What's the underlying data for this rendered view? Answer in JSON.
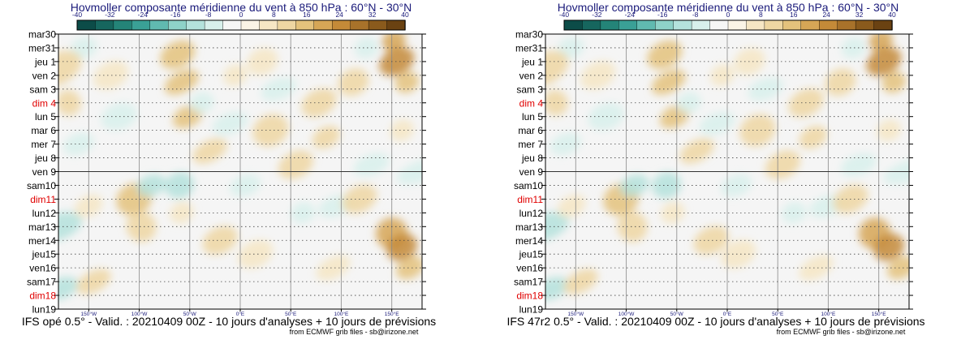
{
  "colors": {
    "title": "#1a1a7a",
    "weekend": "#e00000",
    "scale": [
      "#0c4c48",
      "#16665e",
      "#248478",
      "#3aa096",
      "#60bab0",
      "#8ed2c8",
      "#b4e2dc",
      "#d8f0ec",
      "#f6f6f6",
      "#fbf4e6",
      "#f6e6c4",
      "#eed6a2",
      "#e4c27c",
      "#d6a656",
      "#c48a38",
      "#a8722a",
      "#8a5a1c",
      "#6a4212"
    ]
  },
  "chart_data": [
    {
      "type": "heatmap",
      "title": "Hovmoller composante méridienne du vent à 850 hPa : 60°N - 30°N",
      "colorbar_ticks": [
        "-40",
        "-32",
        "-24",
        "-16",
        "-8",
        "0",
        "8",
        "16",
        "24",
        "32",
        "40"
      ],
      "days": [
        {
          "label": "mar30",
          "weekend": false
        },
        {
          "label": "mer31",
          "weekend": false
        },
        {
          "label": "jeu 1",
          "weekend": false
        },
        {
          "label": "ven 2",
          "weekend": false
        },
        {
          "label": "sam 3",
          "weekend": false
        },
        {
          "label": "dim 4",
          "weekend": true
        },
        {
          "label": "lun 5",
          "weekend": false
        },
        {
          "label": "mar 6",
          "weekend": false
        },
        {
          "label": "mer 7",
          "weekend": false
        },
        {
          "label": "jeu 8",
          "weekend": false
        },
        {
          "label": "ven 9",
          "weekend": false
        },
        {
          "label": "sam10",
          "weekend": false
        },
        {
          "label": "dim11",
          "weekend": true
        },
        {
          "label": "lun12",
          "weekend": false
        },
        {
          "label": "mar13",
          "weekend": false
        },
        {
          "label": "mer14",
          "weekend": false
        },
        {
          "label": "jeu15",
          "weekend": false
        },
        {
          "label": "ven16",
          "weekend": false
        },
        {
          "label": "sam17",
          "weekend": false
        },
        {
          "label": "dim18",
          "weekend": true
        },
        {
          "label": "lun19",
          "weekend": false
        }
      ],
      "analysis_forecast_split": "ven 9",
      "xlim": [
        -180,
        180
      ],
      "x_ticks": [
        {
          "value": -150,
          "label": "150°W"
        },
        {
          "value": -100,
          "label": "100°W"
        },
        {
          "value": -50,
          "label": "50°W"
        },
        {
          "value": 0,
          "label": "0°E"
        },
        {
          "value": 50,
          "label": "50°E"
        },
        {
          "value": 100,
          "label": "100°E"
        },
        {
          "value": 150,
          "label": "150°E"
        }
      ],
      "footer": "IFS opé 0.5° - Valid. : 20210409 00Z - 10 jours d'analyses + 10 jours de prévisions",
      "credit": "from ECMWF grib files - sb@irizone.net"
    },
    {
      "type": "heatmap",
      "title": "Hovmoller composante méridienne du vent à 850 hPa : 60°N - 30°N",
      "colorbar_ticks": [
        "-40",
        "-32",
        "-24",
        "-16",
        "-8",
        "0",
        "8",
        "16",
        "24",
        "32",
        "40"
      ],
      "days": [
        {
          "label": "mar30",
          "weekend": false
        },
        {
          "label": "mer31",
          "weekend": false
        },
        {
          "label": "jeu 1",
          "weekend": false
        },
        {
          "label": "ven 2",
          "weekend": false
        },
        {
          "label": "sam 3",
          "weekend": false
        },
        {
          "label": "dim 4",
          "weekend": true
        },
        {
          "label": "lun 5",
          "weekend": false
        },
        {
          "label": "mar 6",
          "weekend": false
        },
        {
          "label": "mer 7",
          "weekend": false
        },
        {
          "label": "jeu 8",
          "weekend": false
        },
        {
          "label": "ven 9",
          "weekend": false
        },
        {
          "label": "sam10",
          "weekend": false
        },
        {
          "label": "dim11",
          "weekend": true
        },
        {
          "label": "lun12",
          "weekend": false
        },
        {
          "label": "mar13",
          "weekend": false
        },
        {
          "label": "mer14",
          "weekend": false
        },
        {
          "label": "jeu15",
          "weekend": false
        },
        {
          "label": "ven16",
          "weekend": false
        },
        {
          "label": "sam17",
          "weekend": false
        },
        {
          "label": "dim18",
          "weekend": true
        },
        {
          "label": "lun19",
          "weekend": false
        }
      ],
      "analysis_forecast_split": "ven 9",
      "xlim": [
        -180,
        180
      ],
      "x_ticks": [
        {
          "value": -150,
          "label": "150°W"
        },
        {
          "value": -100,
          "label": "100°W"
        },
        {
          "value": -50,
          "label": "50°W"
        },
        {
          "value": 0,
          "label": "0°E"
        },
        {
          "value": 50,
          "label": "50°E"
        },
        {
          "value": 100,
          "label": "100°E"
        },
        {
          "value": 150,
          "label": "150°E"
        }
      ],
      "footer": "IFS 47r2 0.5° - Valid. : 20210409 00Z - 10 jours d'analyses + 10 jours de prévisions",
      "credit": "from ECMWF grib files - sb@irizone.net"
    }
  ]
}
